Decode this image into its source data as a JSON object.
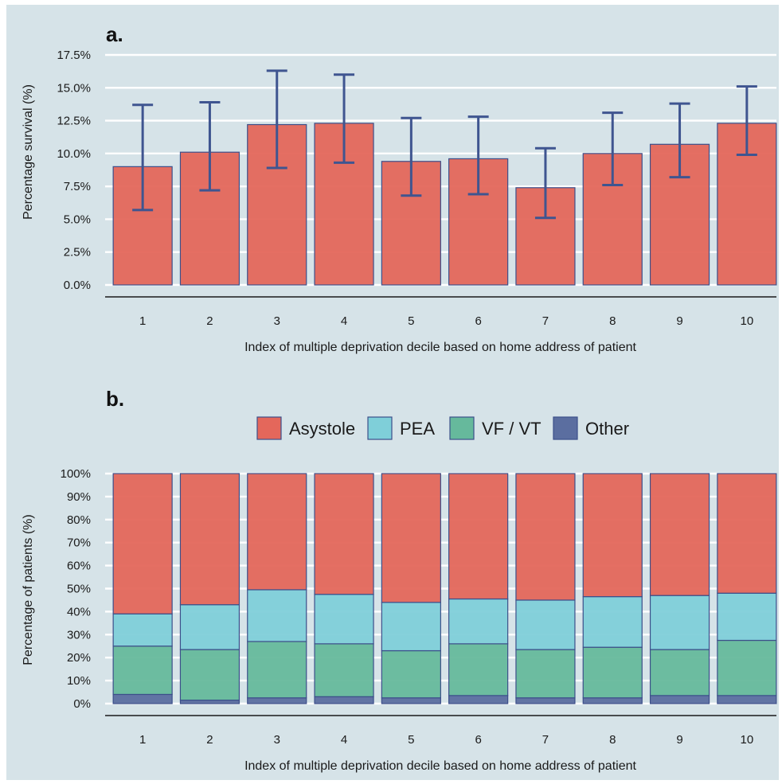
{
  "colors": {
    "background": "#d6e3e8",
    "gridline": "#ffffff",
    "axis": "#1a1a1a",
    "bar_stroke": "#3c4f8a",
    "errorbar": "#3f5590",
    "Asystole": "#e4675b",
    "PEA": "#7fcfd9",
    "VF / VT": "#66b99c",
    "Other": "#5b6ea0"
  },
  "chart_data": [
    {
      "panel": "a.",
      "type": "bar",
      "xlabel": "Index of multiple deprivation decile based on home address of patient",
      "ylabel": "Percentage survival (%)",
      "categories": [
        "1",
        "2",
        "3",
        "4",
        "5",
        "6",
        "7",
        "8",
        "9",
        "10"
      ],
      "values": [
        9.0,
        10.1,
        12.2,
        12.3,
        9.4,
        9.6,
        7.4,
        10.0,
        10.7,
        12.3
      ],
      "error_low": [
        5.7,
        7.2,
        8.9,
        9.3,
        6.8,
        6.9,
        5.1,
        7.6,
        8.2,
        9.9
      ],
      "error_high": [
        13.7,
        13.9,
        16.3,
        16.0,
        12.7,
        12.8,
        10.4,
        13.1,
        13.8,
        15.1
      ],
      "ylim": [
        0,
        17.5
      ],
      "yticks": [
        "0.0%",
        "2.5%",
        "5.0%",
        "7.5%",
        "10.0%",
        "12.5%",
        "15.0%",
        "17.5%"
      ],
      "grid": true
    },
    {
      "panel": "b.",
      "type": "bar",
      "stacked": true,
      "xlabel": "Index of multiple deprivation decile based on home address of patient",
      "ylabel": "Percentage of patients (%)",
      "categories": [
        "1",
        "2",
        "3",
        "4",
        "5",
        "6",
        "7",
        "8",
        "9",
        "10"
      ],
      "legend_position": "top",
      "series": [
        {
          "name": "Other",
          "values": [
            4,
            1.5,
            2.5,
            3,
            2.5,
            3.5,
            2.5,
            2.5,
            3.5,
            3.5
          ]
        },
        {
          "name": "VF / VT",
          "values": [
            21,
            22,
            24.5,
            23,
            20.5,
            22.5,
            21,
            22,
            20,
            24
          ]
        },
        {
          "name": "PEA",
          "values": [
            14,
            19.5,
            22.5,
            21.5,
            21,
            19.5,
            21.5,
            22,
            23.5,
            20.5
          ]
        },
        {
          "name": "Asystole",
          "values": [
            61,
            57,
            50.5,
            52.5,
            56,
            54.5,
            55,
            53.5,
            53,
            52
          ]
        }
      ],
      "legend_order": [
        "Asystole",
        "PEA",
        "VF / VT",
        "Other"
      ],
      "ylim": [
        0,
        100
      ],
      "yticks": [
        "0%",
        "10%",
        "20%",
        "30%",
        "40%",
        "50%",
        "60%",
        "70%",
        "80%",
        "90%",
        "100%"
      ],
      "grid": true
    }
  ]
}
